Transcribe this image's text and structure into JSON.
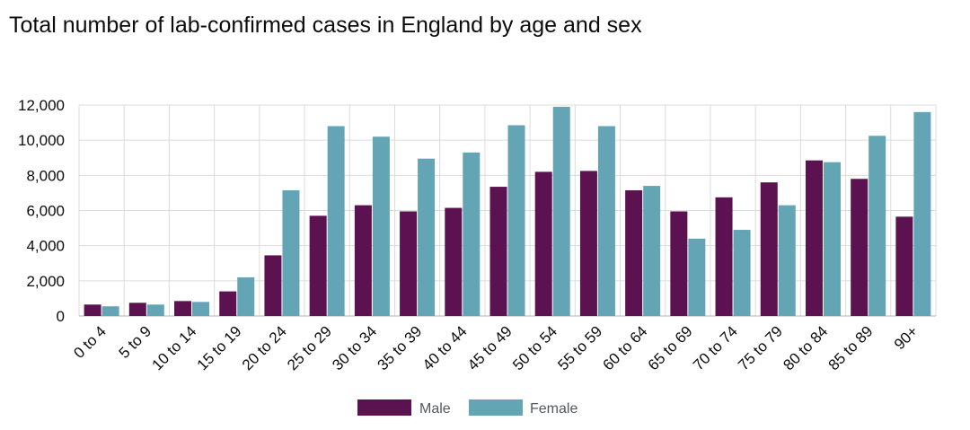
{
  "chart_data": {
    "type": "bar",
    "title": "Total number of lab-confirmed cases in England by age and sex",
    "xlabel": "",
    "ylabel": "",
    "ylim": [
      0,
      12000
    ],
    "yticks": [
      "0",
      "2,000",
      "4,000",
      "6,000",
      "8,000",
      "10,000",
      "12,000"
    ],
    "ytick_values": [
      0,
      2000,
      4000,
      6000,
      8000,
      10000,
      12000
    ],
    "grid": true,
    "legend_position": "bottom",
    "categories": [
      "0 to 4",
      "5 to 9",
      "10 to 14",
      "15 to 19",
      "20 to 24",
      "25 to 29",
      "30 to 34",
      "35 to 39",
      "40 to 44",
      "45 to 49",
      "50 to 54",
      "55 to 59",
      "60 to 64",
      "65 to 69",
      "70 to 74",
      "75 to 79",
      "80 to 84",
      "85 to 89",
      "90+"
    ],
    "series": [
      {
        "name": "Male",
        "color": "#5c1250",
        "values": [
          650,
          750,
          850,
          1400,
          3450,
          5700,
          6300,
          5950,
          6150,
          7350,
          8200,
          8250,
          7150,
          5950,
          6750,
          7600,
          8850,
          7800,
          5650
        ]
      },
      {
        "name": "Female",
        "color": "#64a5b5",
        "values": [
          550,
          650,
          800,
          2200,
          7150,
          10800,
          10200,
          8950,
          9300,
          10850,
          11900,
          10800,
          7400,
          4400,
          4900,
          6300,
          8750,
          10250,
          11600
        ]
      }
    ]
  }
}
